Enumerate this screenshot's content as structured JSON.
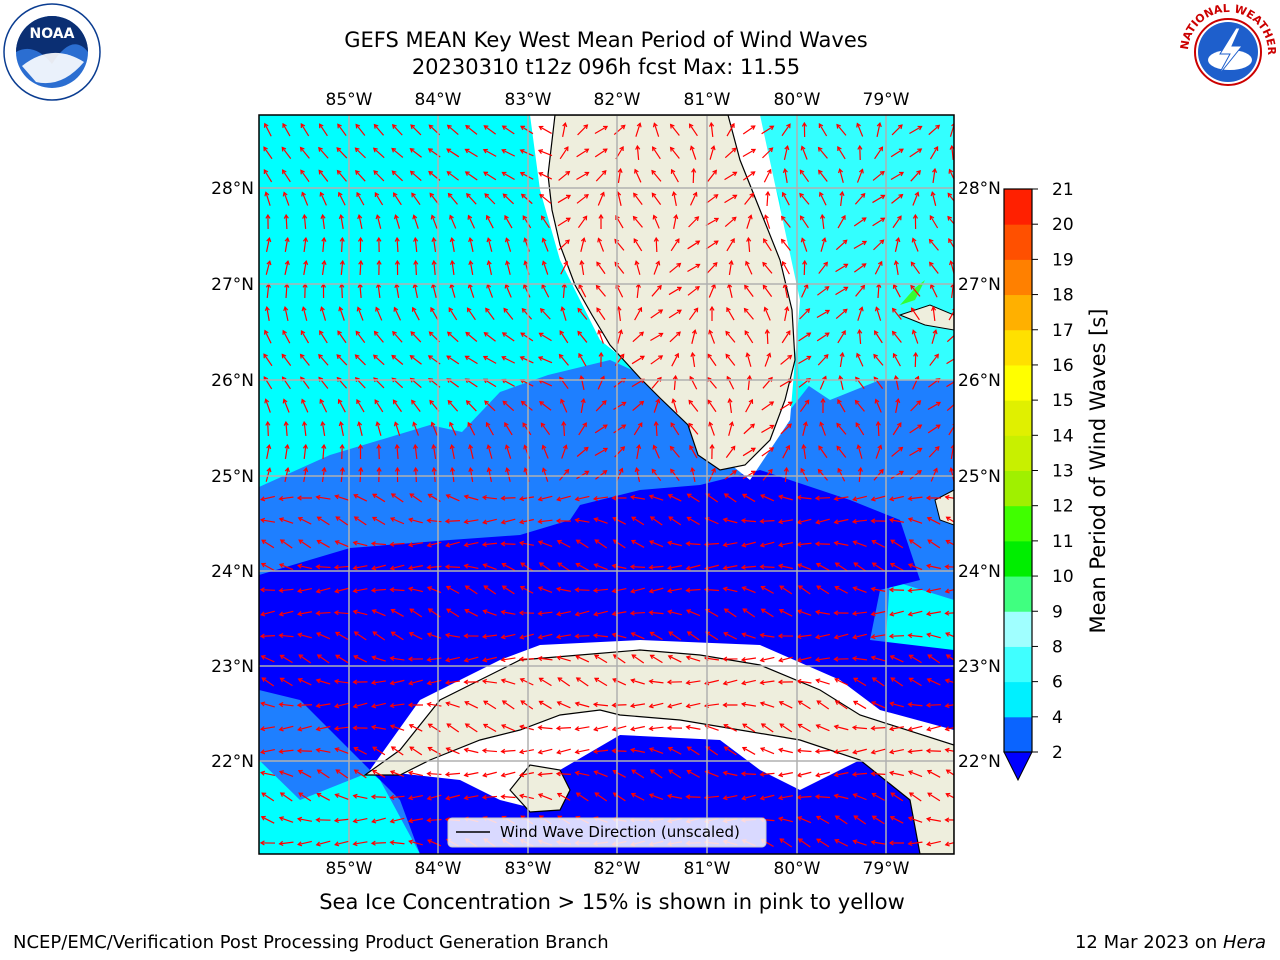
{
  "title": {
    "line1": "GEFS MEAN Key West Mean Period of Wind Waves",
    "line2": "20230310 t12z 096h fcst   Max: 11.55"
  },
  "map": {
    "lon_labels": [
      "85°W",
      "84°W",
      "83°W",
      "82°W",
      "81°W",
      "80°W",
      "79°W"
    ],
    "lat_labels": [
      "28°N",
      "27°N",
      "26°N",
      "25°N",
      "24°N",
      "23°N",
      "22°N"
    ],
    "legend": "Wind Wave Direction (unscaled)",
    "colors": {
      "land": "#eeeedd",
      "ocean_2_4": "#0000ff",
      "ocean_4_6": "#1e7fff",
      "ocean_6_8": "#00ffff",
      "arrows": "#ff0000",
      "grid": "#b0b0b0"
    }
  },
  "colorbar": {
    "label": "Mean Period of Wind Waves [s]",
    "ticks": [
      "2",
      "4",
      "6",
      "8",
      "9",
      "10",
      "11",
      "12",
      "13",
      "14",
      "15",
      "16",
      "17",
      "18",
      "19",
      "20",
      "21"
    ],
    "colors": [
      "#0a64ff",
      "#00f0ff",
      "#40ffff",
      "#a0ffff",
      "#40ff80",
      "#00ee00",
      "#40ff00",
      "#a0f000",
      "#c8f000",
      "#e0f000",
      "#ffff00",
      "#ffe000",
      "#ffb000",
      "#ff8000",
      "#ff5000",
      "#ff2000",
      "#ff0000"
    ]
  },
  "caption": "Sea Ice Concentration > 15% is shown in pink to yellow",
  "footer": {
    "left": "NCEP/EMC/Verification Post Processing Product Generation Branch",
    "right_prefix": "12 Mar 2023 on ",
    "right_host": "Hera"
  },
  "logos": {
    "noaa": "NOAA",
    "nws": "NATIONAL WEATHER SERVICE"
  }
}
